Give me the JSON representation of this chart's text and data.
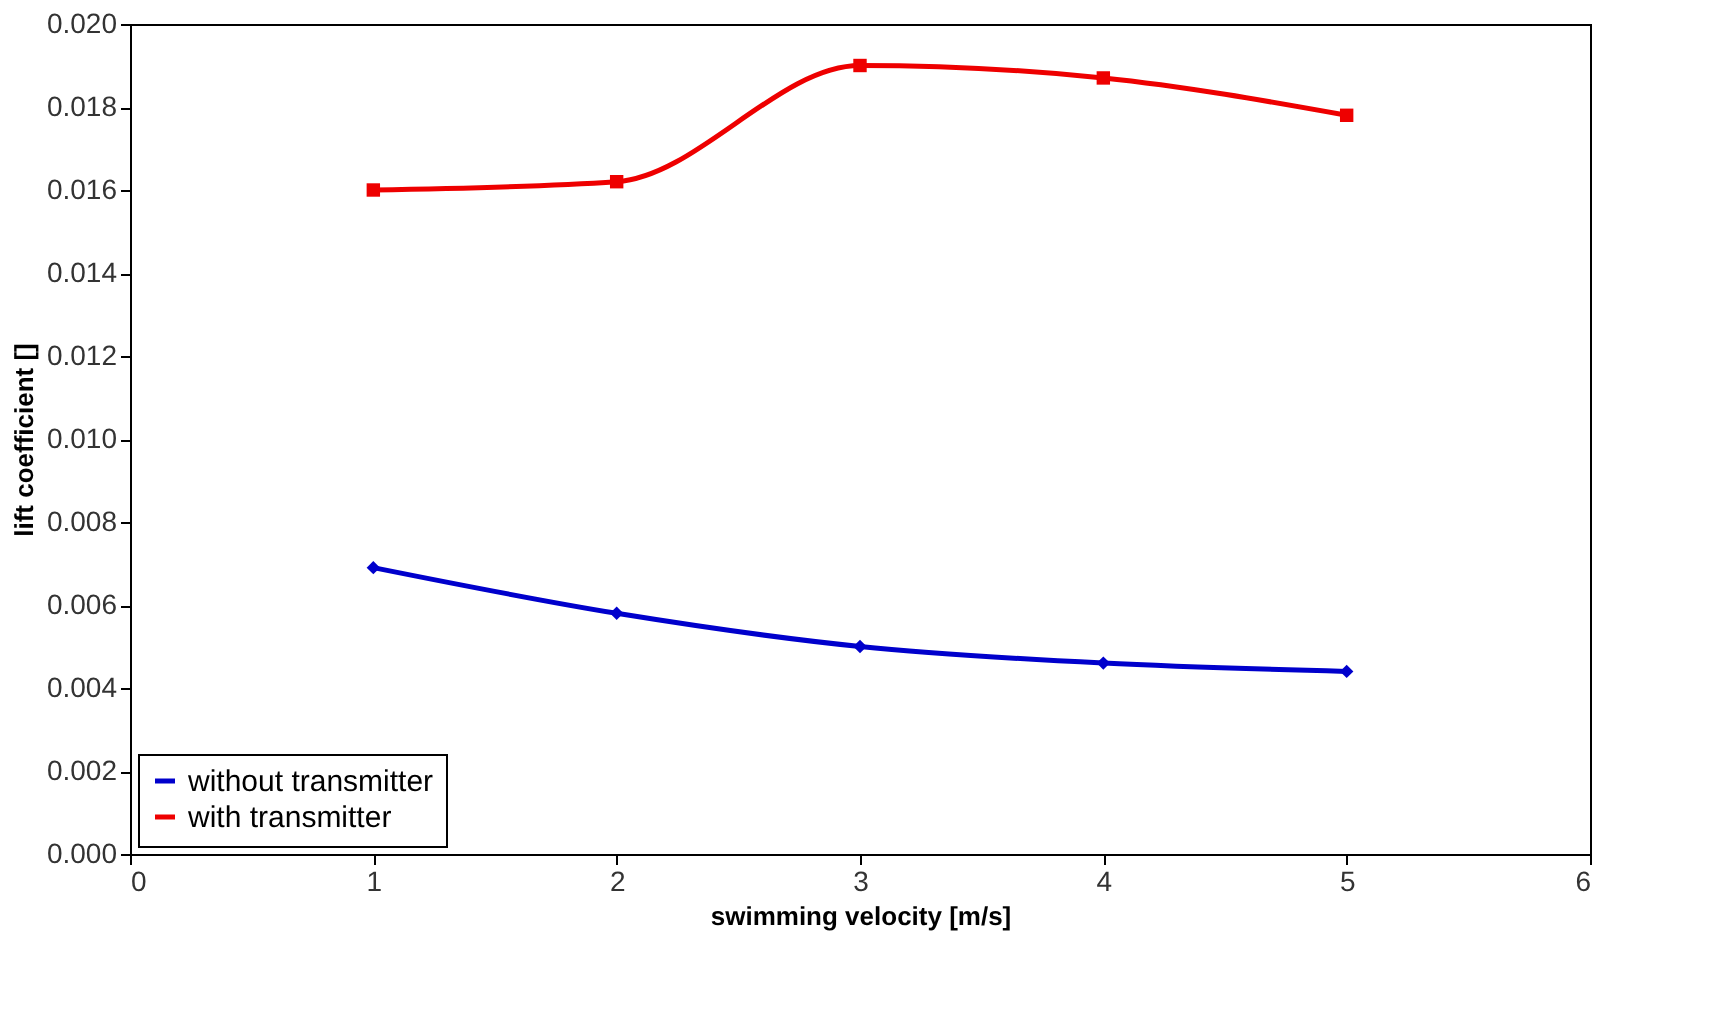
{
  "chart_data": {
    "type": "line",
    "xlabel": "swimming velocity [m/s]",
    "ylabel": "lift coefficient []",
    "x": [
      1,
      2,
      3,
      4,
      5
    ],
    "series": [
      {
        "name": "without transmitter",
        "color": "#0000cc",
        "marker": "diamond",
        "values": [
          0.0069,
          0.0058,
          0.005,
          0.0046,
          0.0044
        ]
      },
      {
        "name": "with transmitter",
        "color": "#ee0000",
        "marker": "square",
        "values": [
          0.016,
          0.0162,
          0.019,
          0.0187,
          0.0178
        ]
      }
    ],
    "xlim": [
      0,
      6
    ],
    "xticks": [
      0,
      1,
      2,
      3,
      4,
      5,
      6
    ],
    "ylim": [
      0,
      0.02
    ],
    "yticks": [
      {
        "value": 0,
        "label": "0.000"
      },
      {
        "value": 0.002,
        "label": "0.002"
      },
      {
        "value": 0.004,
        "label": "0.004"
      },
      {
        "value": 0.006,
        "label": "0.006"
      },
      {
        "value": 0.008,
        "label": "0.008"
      },
      {
        "value": 0.01,
        "label": "0.010"
      },
      {
        "value": 0.012,
        "label": "0.012"
      },
      {
        "value": 0.014,
        "label": "0.014"
      },
      {
        "value": 0.016,
        "label": "0.016"
      },
      {
        "value": 0.018,
        "label": "0.018"
      },
      {
        "value": 0.02,
        "label": "0.020"
      }
    ],
    "grid": false,
    "legend": "bottom left",
    "line_style": "solid"
  }
}
